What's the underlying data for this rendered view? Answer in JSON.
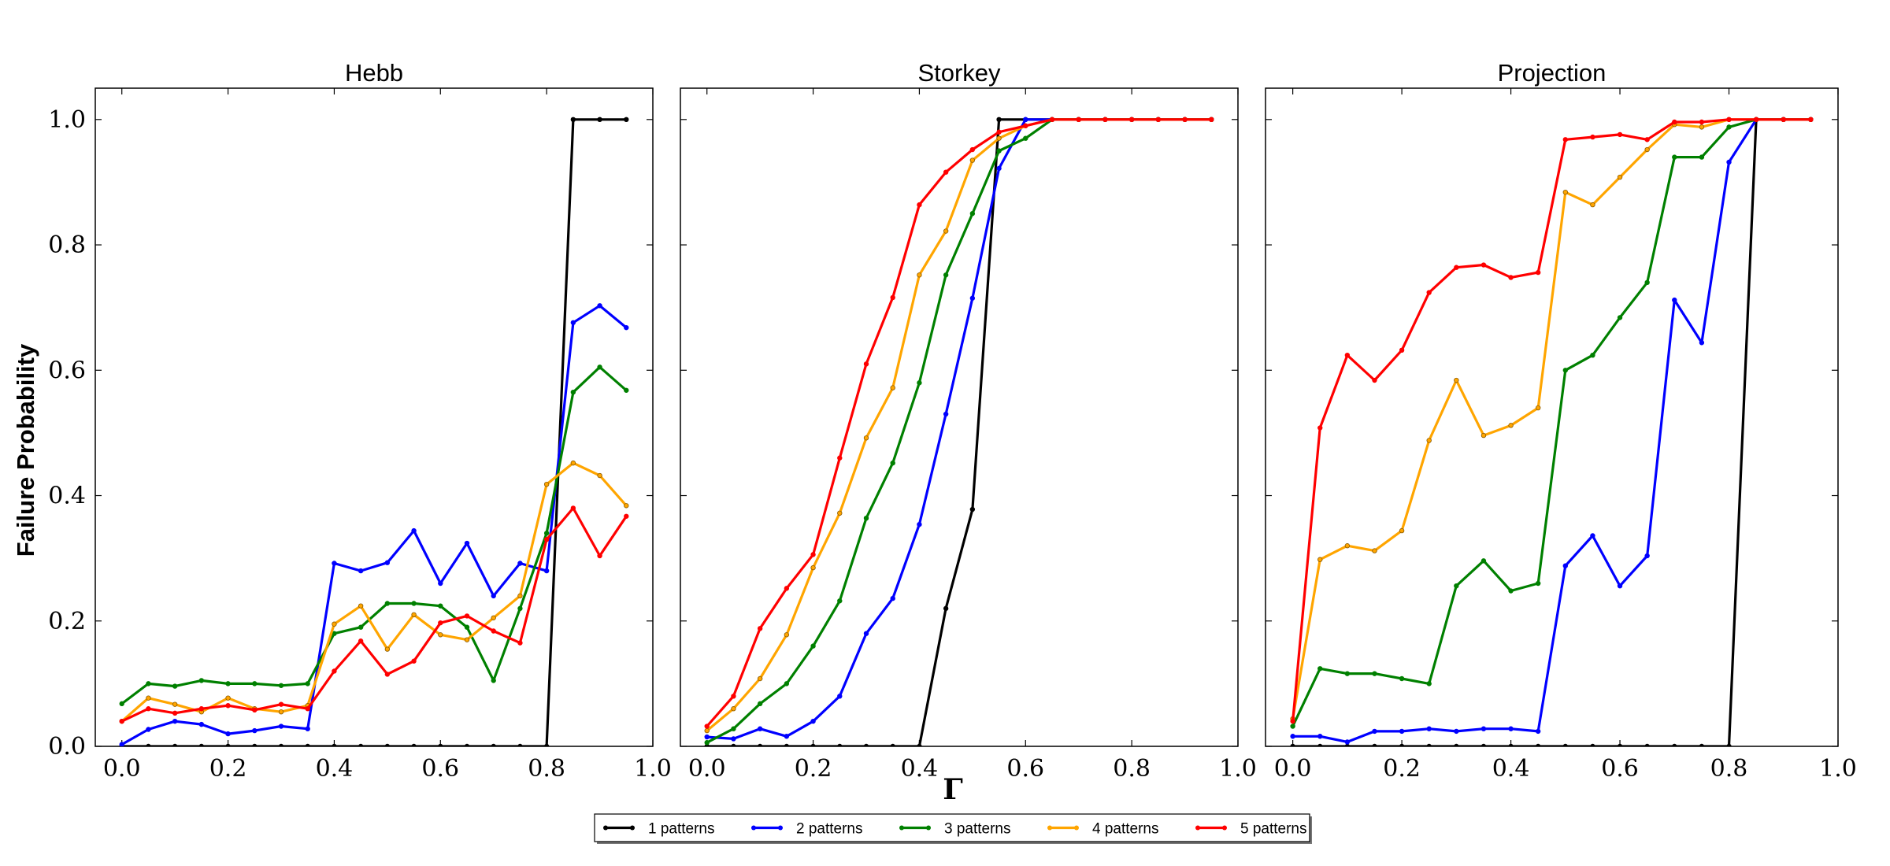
{
  "figure": {
    "ylabel": "Failure Probability",
    "xlabel": "Γ"
  },
  "chart_data": [
    {
      "type": "line",
      "title": "Hebb",
      "xlim": [
        -0.05,
        1.0
      ],
      "ylim": [
        0.0,
        1.05
      ],
      "xticks": [
        "0.0",
        "0.2",
        "0.4",
        "0.6",
        "0.8",
        "1.0"
      ],
      "yticks": [
        "0.0",
        "0.2",
        "0.4",
        "0.6",
        "0.8",
        "1.0"
      ],
      "x": [
        0.0,
        0.05,
        0.1,
        0.15,
        0.2,
        0.25,
        0.3,
        0.35,
        0.4,
        0.45,
        0.5,
        0.55,
        0.6,
        0.65,
        0.7,
        0.75,
        0.8,
        0.85,
        0.9,
        0.95
      ],
      "series": [
        {
          "name": "1 patterns",
          "color": "#000000",
          "values": [
            0,
            0,
            0,
            0,
            0,
            0,
            0,
            0,
            0,
            0,
            0,
            0,
            0,
            0,
            0,
            0,
            0,
            1.0,
            1.0,
            1.0
          ]
        },
        {
          "name": "2 patterns",
          "color": "#0000ff",
          "values": [
            0.003,
            0.027,
            0.04,
            0.035,
            0.02,
            0.025,
            0.032,
            0.028,
            0.292,
            0.28,
            0.293,
            0.344,
            0.26,
            0.324,
            0.24,
            0.292,
            0.28,
            0.676,
            0.703,
            0.668
          ]
        },
        {
          "name": "3 patterns",
          "color": "#008000",
          "values": [
            0.068,
            0.1,
            0.096,
            0.105,
            0.1,
            0.1,
            0.097,
            0.1,
            0.18,
            0.19,
            0.228,
            0.228,
            0.224,
            0.19,
            0.105,
            0.22,
            0.34,
            0.565,
            0.605,
            0.568
          ]
        },
        {
          "name": "4 patterns",
          "color": "#ffa500",
          "values": [
            0.04,
            0.077,
            0.067,
            0.055,
            0.077,
            0.06,
            0.055,
            0.065,
            0.195,
            0.224,
            0.155,
            0.21,
            0.178,
            0.17,
            0.205,
            0.24,
            0.418,
            0.452,
            0.432,
            0.384
          ]
        },
        {
          "name": "5 patterns",
          "color": "#ff0000",
          "values": [
            0.04,
            0.06,
            0.053,
            0.06,
            0.065,
            0.058,
            0.067,
            0.06,
            0.12,
            0.168,
            0.115,
            0.136,
            0.197,
            0.208,
            0.184,
            0.165,
            0.33,
            0.38,
            0.304,
            0.367
          ]
        }
      ]
    },
    {
      "type": "line",
      "title": "Storkey",
      "xlim": [
        -0.05,
        1.0
      ],
      "ylim": [
        0.0,
        1.05
      ],
      "xticks": [
        "0.0",
        "0.2",
        "0.4",
        "0.6",
        "0.8",
        "1.0"
      ],
      "yticks": [
        "0.0",
        "0.2",
        "0.4",
        "0.6",
        "0.8",
        "1.0"
      ],
      "x": [
        0.0,
        0.05,
        0.1,
        0.15,
        0.2,
        0.25,
        0.3,
        0.35,
        0.4,
        0.45,
        0.5,
        0.55,
        0.6,
        0.65,
        0.7,
        0.75,
        0.8,
        0.85,
        0.9,
        0.95
      ],
      "series": [
        {
          "name": "1 patterns",
          "color": "#000000",
          "values": [
            0,
            0,
            0,
            0,
            0,
            0,
            0,
            0,
            0,
            0.22,
            0.378,
            1.0,
            1.0,
            1.0,
            1.0,
            1.0,
            1.0,
            1.0,
            1.0,
            1.0
          ]
        },
        {
          "name": "2 patterns",
          "color": "#0000ff",
          "values": [
            0.015,
            0.012,
            0.028,
            0.016,
            0.04,
            0.08,
            0.18,
            0.236,
            0.354,
            0.53,
            0.715,
            0.922,
            1.0,
            1.0,
            1.0,
            1.0,
            1.0,
            1.0,
            1.0,
            1.0
          ]
        },
        {
          "name": "3 patterns",
          "color": "#008000",
          "values": [
            0.006,
            0.028,
            0.068,
            0.1,
            0.16,
            0.232,
            0.364,
            0.452,
            0.58,
            0.752,
            0.85,
            0.95,
            0.97,
            1.0,
            1.0,
            1.0,
            1.0,
            1.0,
            1.0,
            1.0
          ]
        },
        {
          "name": "4 patterns",
          "color": "#ffa500",
          "values": [
            0.025,
            0.06,
            0.108,
            0.178,
            0.285,
            0.372,
            0.492,
            0.572,
            0.752,
            0.822,
            0.935,
            0.97,
            0.99,
            1.0,
            1.0,
            1.0,
            1.0,
            1.0,
            1.0,
            1.0
          ]
        },
        {
          "name": "5 patterns",
          "color": "#ff0000",
          "values": [
            0.032,
            0.08,
            0.188,
            0.252,
            0.306,
            0.46,
            0.61,
            0.716,
            0.864,
            0.916,
            0.952,
            0.98,
            0.99,
            1.0,
            1.0,
            1.0,
            1.0,
            1.0,
            1.0,
            1.0
          ]
        }
      ]
    },
    {
      "type": "line",
      "title": "Projection",
      "xlim": [
        -0.05,
        1.0
      ],
      "ylim": [
        0.0,
        1.05
      ],
      "xticks": [
        "0.0",
        "0.2",
        "0.4",
        "0.6",
        "0.8",
        "1.0"
      ],
      "yticks": [
        "0.0",
        "0.2",
        "0.4",
        "0.6",
        "0.8",
        "1.0"
      ],
      "x": [
        0.0,
        0.05,
        0.1,
        0.15,
        0.2,
        0.25,
        0.3,
        0.35,
        0.4,
        0.45,
        0.5,
        0.55,
        0.6,
        0.65,
        0.7,
        0.75,
        0.8,
        0.85,
        0.9,
        0.95
      ],
      "series": [
        {
          "name": "1 patterns",
          "color": "#000000",
          "values": [
            0,
            0,
            0,
            0,
            0,
            0,
            0,
            0,
            0,
            0,
            0,
            0,
            0,
            0,
            0,
            0,
            0,
            1.0,
            1.0,
            1.0
          ]
        },
        {
          "name": "2 patterns",
          "color": "#0000ff",
          "values": [
            0.016,
            0.016,
            0.007,
            0.024,
            0.024,
            0.028,
            0.024,
            0.028,
            0.028,
            0.024,
            0.288,
            0.336,
            0.256,
            0.304,
            0.712,
            0.644,
            0.932,
            1.0,
            1.0,
            1.0
          ]
        },
        {
          "name": "3 patterns",
          "color": "#008000",
          "values": [
            0.032,
            0.124,
            0.116,
            0.116,
            0.108,
            0.1,
            0.256,
            0.296,
            0.248,
            0.26,
            0.6,
            0.624,
            0.684,
            0.74,
            0.94,
            0.94,
            0.988,
            1.0,
            1.0,
            1.0
          ]
        },
        {
          "name": "4 patterns",
          "color": "#ffa500",
          "values": [
            0.044,
            0.298,
            0.32,
            0.312,
            0.344,
            0.488,
            0.584,
            0.496,
            0.512,
            0.54,
            0.884,
            0.864,
            0.908,
            0.952,
            0.992,
            0.988,
            1.0,
            1.0,
            1.0,
            1.0
          ]
        },
        {
          "name": "5 patterns",
          "color": "#ff0000",
          "values": [
            0.04,
            0.508,
            0.624,
            0.584,
            0.632,
            0.724,
            0.764,
            0.768,
            0.748,
            0.756,
            0.968,
            0.972,
            0.976,
            0.968,
            0.996,
            0.996,
            1.0,
            1.0,
            1.0,
            1.0
          ]
        }
      ]
    }
  ],
  "legend": {
    "items": [
      {
        "label": "1 patterns",
        "color": "#000000"
      },
      {
        "label": "2 patterns",
        "color": "#0000ff"
      },
      {
        "label": "3 patterns",
        "color": "#008000"
      },
      {
        "label": "4 patterns",
        "color": "#ffa500"
      },
      {
        "label": "5 patterns",
        "color": "#ff0000"
      }
    ]
  }
}
